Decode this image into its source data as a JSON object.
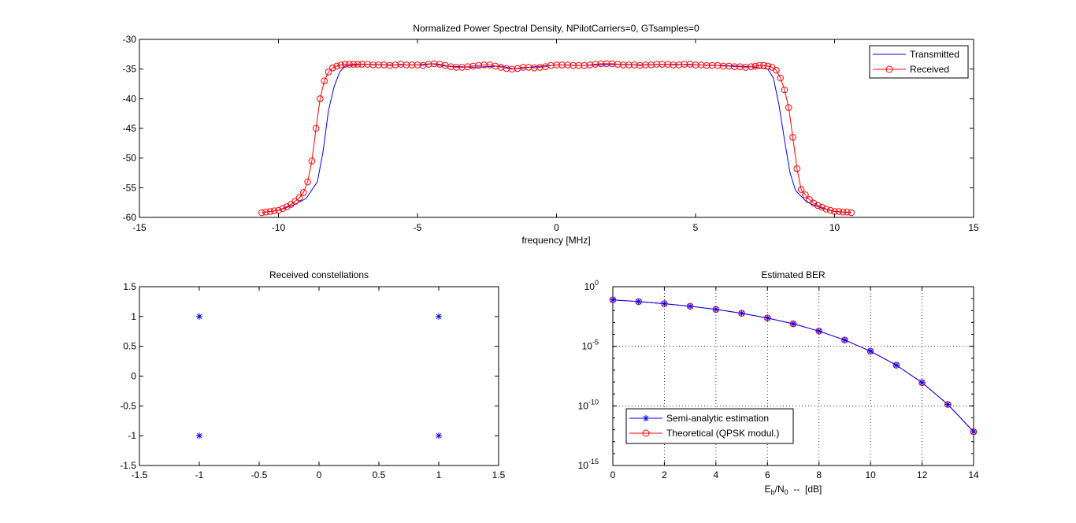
{
  "chart_data": [
    {
      "id": "psd",
      "type": "line",
      "title": "Normalized Power Spectral Density, NPilotCarriers=0, GTsamples=0",
      "xlabel": "frequency [MHz]",
      "ylabel": "",
      "xlim": [
        -15,
        15
      ],
      "ylim": [
        -60,
        -30
      ],
      "xticks": [
        -15,
        -10,
        -5,
        0,
        5,
        10,
        15
      ],
      "yticks": [
        -30,
        -35,
        -40,
        -45,
        -50,
        -55,
        -60
      ],
      "xtick_labels": [
        "-15",
        "-10",
        "-5",
        "0",
        "5",
        "10",
        "15"
      ],
      "ytick_labels": [
        "-30",
        "-35",
        "-40",
        "-45",
        "-50",
        "-55",
        "-60"
      ],
      "grid": false,
      "legend": "top-right",
      "series": [
        {
          "name": "Transmitted",
          "color": "#0000ff",
          "marker": "none",
          "x": [
            -10.6,
            -10.0,
            -9.5,
            -9.0,
            -8.6,
            -8.4,
            -8.2,
            -8.0,
            -7.8,
            -7.6,
            -7.0,
            -6.0,
            -5.0,
            -4.5,
            -4.0,
            -3.0,
            -2.0,
            -1.5,
            -1.0,
            0.0,
            1.0,
            2.0,
            3.0,
            4.0,
            5.0,
            6.0,
            7.0,
            7.6,
            7.8,
            8.0,
            8.2,
            8.4,
            8.6,
            9.0,
            9.5,
            10.0,
            10.6
          ],
          "y": [
            -59.2,
            -58.8,
            -58.0,
            -56.8,
            -54.0,
            -49.0,
            -42.0,
            -38.0,
            -35.5,
            -34.5,
            -34.2,
            -34.3,
            -34.3,
            -34.1,
            -34.5,
            -34.7,
            -34.5,
            -35.0,
            -34.7,
            -34.3,
            -34.4,
            -34.2,
            -34.3,
            -34.2,
            -34.3,
            -34.4,
            -34.6,
            -35.0,
            -36.5,
            -41.0,
            -47.0,
            -52.5,
            -55.5,
            -57.4,
            -58.4,
            -59.0,
            -59.2
          ]
        },
        {
          "name": "Received",
          "color": "#ff0000",
          "marker": "circle",
          "x": [
            -10.6,
            -10.45,
            -10.3,
            -10.15,
            -10.0,
            -9.85,
            -9.7,
            -9.55,
            -9.4,
            -9.25,
            -9.1,
            -8.95,
            -8.8,
            -8.65,
            -8.5,
            -8.35,
            -8.2,
            -8.05,
            -7.9,
            -7.75,
            -7.6,
            -7.45,
            -7.3,
            -7.15,
            -7.0,
            -6.8,
            -6.6,
            -6.4,
            -6.2,
            -6.0,
            -5.8,
            -5.6,
            -5.4,
            -5.2,
            -5.0,
            -4.8,
            -4.6,
            -4.4,
            -4.2,
            -4.0,
            -3.8,
            -3.6,
            -3.4,
            -3.2,
            -3.0,
            -2.8,
            -2.6,
            -2.4,
            -2.2,
            -2.0,
            -1.8,
            -1.6,
            -1.4,
            -1.2,
            -1.0,
            -0.8,
            -0.6,
            -0.4,
            -0.2,
            0.0,
            0.2,
            0.4,
            0.6,
            0.8,
            1.0,
            1.2,
            1.4,
            1.6,
            1.8,
            2.0,
            2.2,
            2.4,
            2.6,
            2.8,
            3.0,
            3.2,
            3.4,
            3.6,
            3.8,
            4.0,
            4.2,
            4.4,
            4.6,
            4.8,
            5.0,
            5.2,
            5.4,
            5.6,
            5.8,
            6.0,
            6.2,
            6.4,
            6.6,
            6.8,
            7.0,
            7.15,
            7.3,
            7.45,
            7.6,
            7.75,
            7.9,
            8.05,
            8.2,
            8.35,
            8.5,
            8.65,
            8.8,
            8.95,
            9.1,
            9.25,
            9.4,
            9.55,
            9.7,
            9.85,
            10.0,
            10.15,
            10.3,
            10.45,
            10.6
          ],
          "y": [
            -59.2,
            -59.1,
            -59.0,
            -58.9,
            -58.8,
            -58.5,
            -58.2,
            -57.8,
            -57.3,
            -56.7,
            -55.8,
            -54.0,
            -50.5,
            -45.0,
            -40.0,
            -37.0,
            -35.5,
            -34.8,
            -34.5,
            -34.3,
            -34.2,
            -34.2,
            -34.2,
            -34.2,
            -34.2,
            -34.2,
            -34.3,
            -34.3,
            -34.3,
            -34.4,
            -34.3,
            -34.2,
            -34.3,
            -34.3,
            -34.3,
            -34.4,
            -34.2,
            -34.1,
            -34.2,
            -34.4,
            -34.6,
            -34.7,
            -34.7,
            -34.6,
            -34.5,
            -34.4,
            -34.3,
            -34.3,
            -34.5,
            -34.7,
            -34.9,
            -35.0,
            -34.9,
            -34.7,
            -34.7,
            -34.8,
            -34.7,
            -34.6,
            -34.4,
            -34.3,
            -34.3,
            -34.3,
            -34.4,
            -34.4,
            -34.4,
            -34.3,
            -34.2,
            -34.1,
            -34.1,
            -34.1,
            -34.2,
            -34.3,
            -34.3,
            -34.3,
            -34.4,
            -34.3,
            -34.3,
            -34.2,
            -34.2,
            -34.2,
            -34.3,
            -34.3,
            -34.2,
            -34.2,
            -34.3,
            -34.3,
            -34.4,
            -34.4,
            -34.4,
            -34.5,
            -34.5,
            -34.6,
            -34.6,
            -34.7,
            -34.6,
            -34.5,
            -34.4,
            -34.4,
            -34.5,
            -34.7,
            -35.2,
            -36.5,
            -38.5,
            -41.5,
            -46.5,
            -51.8,
            -55.3,
            -56.2,
            -57.0,
            -57.6,
            -58.0,
            -58.3,
            -58.6,
            -58.8,
            -59.0,
            -59.0,
            -59.1,
            -59.1,
            -59.2
          ]
        }
      ]
    },
    {
      "id": "constellation",
      "type": "scatter",
      "title": "Received constellations",
      "xlabel": "",
      "ylabel": "",
      "xlim": [
        -1.5,
        1.5
      ],
      "ylim": [
        -1.5,
        1.5
      ],
      "xticks": [
        -1.5,
        -1,
        -0.5,
        0,
        0.5,
        1,
        1.5
      ],
      "yticks": [
        1.5,
        1,
        0.5,
        0,
        -0.5,
        -1,
        -1.5
      ],
      "xtick_labels": [
        "-1.5",
        "-1",
        "-0.5",
        "0",
        "0.5",
        "1",
        "1.5"
      ],
      "ytick_labels": [
        "1.5",
        "1",
        "0.5",
        "0",
        "-0.5",
        "-1",
        "-1.5"
      ],
      "grid": false,
      "series": [
        {
          "color": "#0000ff",
          "marker": "asterisk",
          "x": [
            -1,
            1,
            -1,
            1
          ],
          "y": [
            1,
            1,
            -1,
            -1
          ]
        }
      ]
    },
    {
      "id": "ber",
      "type": "line",
      "title": "Estimated BER",
      "xlabel_main": "E",
      "xlabel_sub1": "b",
      "xlabel_mid": "/N",
      "xlabel_sub2": "0",
      "xlabel_tail": "  --  [dB]",
      "ylabel": "",
      "yscale": "log",
      "xlim": [
        0,
        14
      ],
      "ylim_exp": [
        -15,
        0
      ],
      "xticks": [
        0,
        2,
        4,
        6,
        8,
        10,
        12,
        14
      ],
      "xtick_labels": [
        "0",
        "2",
        "4",
        "6",
        "8",
        "10",
        "12",
        "14"
      ],
      "yticks_exp": [
        0,
        -5,
        -10,
        -15
      ],
      "ytick_base": "10",
      "ytick_exps": [
        "0",
        "-5",
        "-10",
        "-15"
      ],
      "grid": true,
      "legend": "bottom-left",
      "series": [
        {
          "name": "Semi-analytic estimation",
          "color": "#0000ff",
          "marker": "asterisk",
          "x": [
            0,
            1,
            2,
            3,
            4,
            5,
            6,
            7,
            8,
            9,
            10,
            11,
            12,
            13,
            14
          ],
          "y": [
            0.0786,
            0.0563,
            0.0375,
            0.0229,
            0.0125,
            0.00595,
            0.00239,
            0.000773,
            0.000191,
            3.36e-05,
            3.87e-06,
            2.61e-07,
            9.01e-09,
            1.33e-10,
            6.8e-13
          ]
        },
        {
          "name": "Theoretical (QPSK modul.)",
          "color": "#ff0000",
          "marker": "circle",
          "x": [
            0,
            1,
            2,
            3,
            4,
            5,
            6,
            7,
            8,
            9,
            10,
            11,
            12,
            13,
            14
          ],
          "y": [
            0.0786,
            0.0563,
            0.0375,
            0.0229,
            0.0125,
            0.00595,
            0.00239,
            0.000773,
            0.000191,
            3.36e-05,
            3.87e-06,
            2.61e-07,
            9.01e-09,
            1.33e-10,
            6.8e-13
          ]
        }
      ]
    }
  ]
}
